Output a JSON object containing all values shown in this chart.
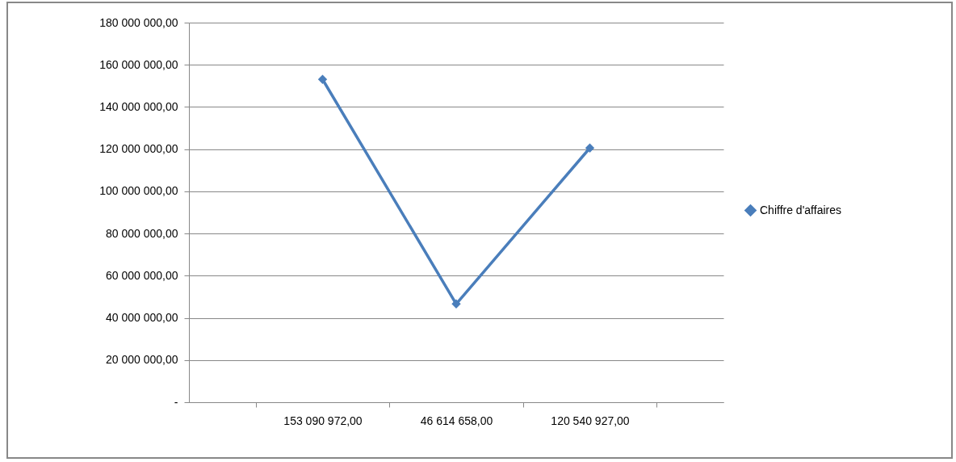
{
  "chart_data": {
    "type": "line",
    "categories": [
      "153 090 972,00",
      "46 614 658,00",
      "120 540 927,00"
    ],
    "series": [
      {
        "name": "Chiffre d'affaires",
        "color": "#4a7ebb",
        "values": [
          153090972,
          46614658,
          120540927
        ]
      }
    ],
    "ylim": [
      0,
      180000000
    ],
    "yticks": [
      {
        "value": 0,
        "label": "-"
      },
      {
        "value": 20000000,
        "label": "20 000 000,00"
      },
      {
        "value": 40000000,
        "label": "40 000 000,00"
      },
      {
        "value": 60000000,
        "label": "60 000 000,00"
      },
      {
        "value": 80000000,
        "label": "80 000 000,00"
      },
      {
        "value": 100000000,
        "label": "100 000 000,00"
      },
      {
        "value": 120000000,
        "label": "120 000 000,00"
      },
      {
        "value": 140000000,
        "label": "140 000 000,00"
      },
      {
        "value": 160000000,
        "label": "160 000 000,00"
      },
      {
        "value": 180000000,
        "label": "180 000 000,00"
      }
    ],
    "grid": "y",
    "legend": "right",
    "marker": "diamond",
    "line_style": "solid"
  }
}
